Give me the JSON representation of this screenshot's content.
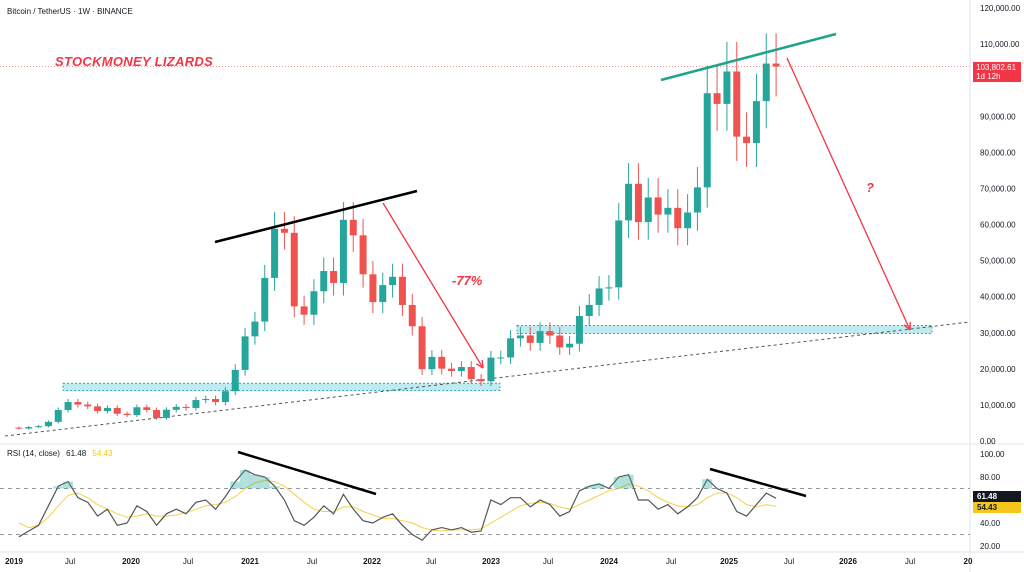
{
  "header": {
    "title": "Bitcoin / TetherUS · 1W · BINANCE"
  },
  "annotations": {
    "brand": "STOCKMONEY LIZARDS",
    "drop": "-77%",
    "question": "?"
  },
  "price_tag": {
    "price": "103,802.61",
    "countdown": "1d 12h"
  },
  "rsi": {
    "label": "RSI (14, close)",
    "value": "61.48",
    "ma_value": "54.43",
    "value_color": "#131722",
    "ma_color": "#f7c61a",
    "upper_band": 70,
    "lower_band": 30
  },
  "colors": {
    "up": "#26a69a",
    "down": "#ef5350",
    "rsi_line": "#555555",
    "rsi_ma": "#f7d046",
    "annotation_red": "#f23645",
    "zone": "#7fd6e0",
    "trend_green": "#1fa38a"
  },
  "chart_data": [
    {
      "type": "candlestick",
      "title": "Bitcoin / TetherUS · 1W · BINANCE",
      "y_ticks": [
        "120,000.00",
        "110,000.00",
        "90,000.00",
        "80,000.00",
        "70,000.00",
        "60,000.00",
        "50,000.00",
        "40,000.00",
        "30,000.00",
        "20,000.00",
        "10,000.00",
        "0.00"
      ],
      "ylim": [
        0,
        120000
      ],
      "x_ticks": [
        "2019",
        "Jul",
        "2020",
        "Jul",
        "2021",
        "Jul",
        "2022",
        "Jul",
        "2023",
        "Jul",
        "2024",
        "Jul",
        "2025",
        "Jul",
        "2026",
        "Jul",
        "20"
      ],
      "start": "2019-01",
      "interval": "monthly (approx.)",
      "closes": [
        3450,
        3850,
        4100,
        5300,
        8600,
        10800,
        10100,
        9600,
        8300,
        9150,
        7550,
        7200,
        9350,
        8600,
        6400,
        8650,
        9450,
        9150,
        11350,
        11650,
        10800,
        13800,
        19700,
        29000,
        33100,
        45200,
        58800,
        57700,
        37300,
        35000,
        41500,
        47100,
        43800,
        61300,
        57000,
        46200,
        38500,
        43200,
        45500,
        37700,
        31800,
        19900,
        23300,
        20050,
        19400,
        20500,
        17150,
        16550,
        23100,
        23150,
        28450,
        29250,
        27200,
        30450,
        29230,
        25940,
        26960,
        34650,
        37700,
        42280,
        42580,
        61130,
        71280,
        60670,
        67490,
        62750,
        64620,
        58970,
        63330,
        70290,
        96400,
        93430,
        102400,
        84350,
        82550,
        94200,
        104600,
        103802.61
      ],
      "first_open": 3700,
      "last_price": 103802.61
    },
    {
      "type": "line",
      "title": "RSI (14, close)",
      "y_ticks": [
        "100.00",
        "80.00",
        "40.00",
        "20.00"
      ],
      "ylim": [
        20,
        100
      ],
      "series": [
        {
          "name": "RSI",
          "values": [
            28,
            33,
            38,
            55,
            72,
            76,
            62,
            58,
            46,
            52,
            38,
            40,
            55,
            50,
            38,
            48,
            52,
            48,
            58,
            60,
            52,
            63,
            76,
            86,
            82,
            80,
            72,
            60,
            42,
            38,
            45,
            55,
            48,
            65,
            52,
            42,
            40,
            45,
            48,
            38,
            30,
            25,
            34,
            36,
            34,
            36,
            32,
            33,
            60,
            56,
            62,
            62,
            54,
            60,
            56,
            46,
            50,
            68,
            72,
            74,
            70,
            80,
            82,
            60,
            60,
            52,
            56,
            48,
            54,
            62,
            78,
            70,
            66,
            50,
            46,
            56,
            66,
            61.48
          ]
        },
        {
          "name": "MA",
          "values": [
            40,
            36,
            38,
            45,
            55,
            64,
            66,
            62,
            56,
            52,
            48,
            45,
            46,
            48,
            46,
            46,
            47,
            49,
            52,
            55,
            56,
            58,
            63,
            70,
            75,
            77,
            76,
            72,
            65,
            58,
            52,
            50,
            50,
            54,
            54,
            50,
            47,
            44,
            44,
            42,
            40,
            36,
            34,
            33,
            34,
            34,
            34,
            35,
            40,
            45,
            50,
            55,
            57,
            58,
            57,
            54,
            52,
            56,
            60,
            64,
            68,
            70,
            74,
            72,
            68,
            62,
            58,
            55,
            54,
            56,
            62,
            66,
            66,
            62,
            56,
            54,
            56,
            54.43
          ]
        }
      ]
    }
  ]
}
